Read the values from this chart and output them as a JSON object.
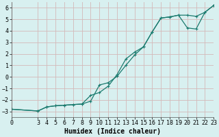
{
  "xlabel": "Humidex (Indice chaleur)",
  "ylabel": "",
  "background_color": "#d8f0f0",
  "grid_color": "#d4b8b8",
  "line_color": "#1a7a6e",
  "xlim": [
    0,
    23
  ],
  "ylim": [
    -3.5,
    6.5
  ],
  "yticks": [
    -3,
    -2,
    -1,
    0,
    1,
    2,
    3,
    4,
    5,
    6
  ],
  "xticks": [
    0,
    3,
    4,
    5,
    6,
    7,
    8,
    9,
    10,
    11,
    12,
    13,
    14,
    15,
    16,
    17,
    18,
    19,
    20,
    21,
    22,
    23
  ],
  "curve1_x": [
    0,
    3,
    4,
    5,
    6,
    7,
    8,
    9,
    10,
    11,
    12,
    13,
    14,
    15,
    16,
    17,
    18,
    19,
    20,
    21,
    22,
    23
  ],
  "curve1_y": [
    -2.8,
    -2.95,
    -2.6,
    -2.5,
    -2.45,
    -2.4,
    -2.35,
    -2.1,
    -0.7,
    -0.5,
    0.05,
    1.0,
    1.9,
    2.6,
    3.9,
    5.1,
    5.2,
    5.35,
    5.35,
    5.25,
    5.6,
    6.2
  ],
  "curve2_x": [
    0,
    3,
    4,
    5,
    6,
    7,
    8,
    9,
    10,
    11,
    12,
    13,
    14,
    15,
    16,
    17,
    18,
    19,
    20,
    21,
    22,
    23
  ],
  "curve2_y": [
    -2.8,
    -2.95,
    -2.6,
    -2.5,
    -2.45,
    -2.4,
    -2.35,
    -1.6,
    -1.35,
    -0.8,
    0.2,
    1.55,
    2.15,
    2.6,
    3.9,
    5.1,
    5.2,
    5.35,
    4.25,
    4.15,
    5.6,
    6.2
  ],
  "marker": "+",
  "markersize": 3.5,
  "linewidth": 0.9,
  "tick_fontsize": 6,
  "xlabel_fontsize": 7
}
